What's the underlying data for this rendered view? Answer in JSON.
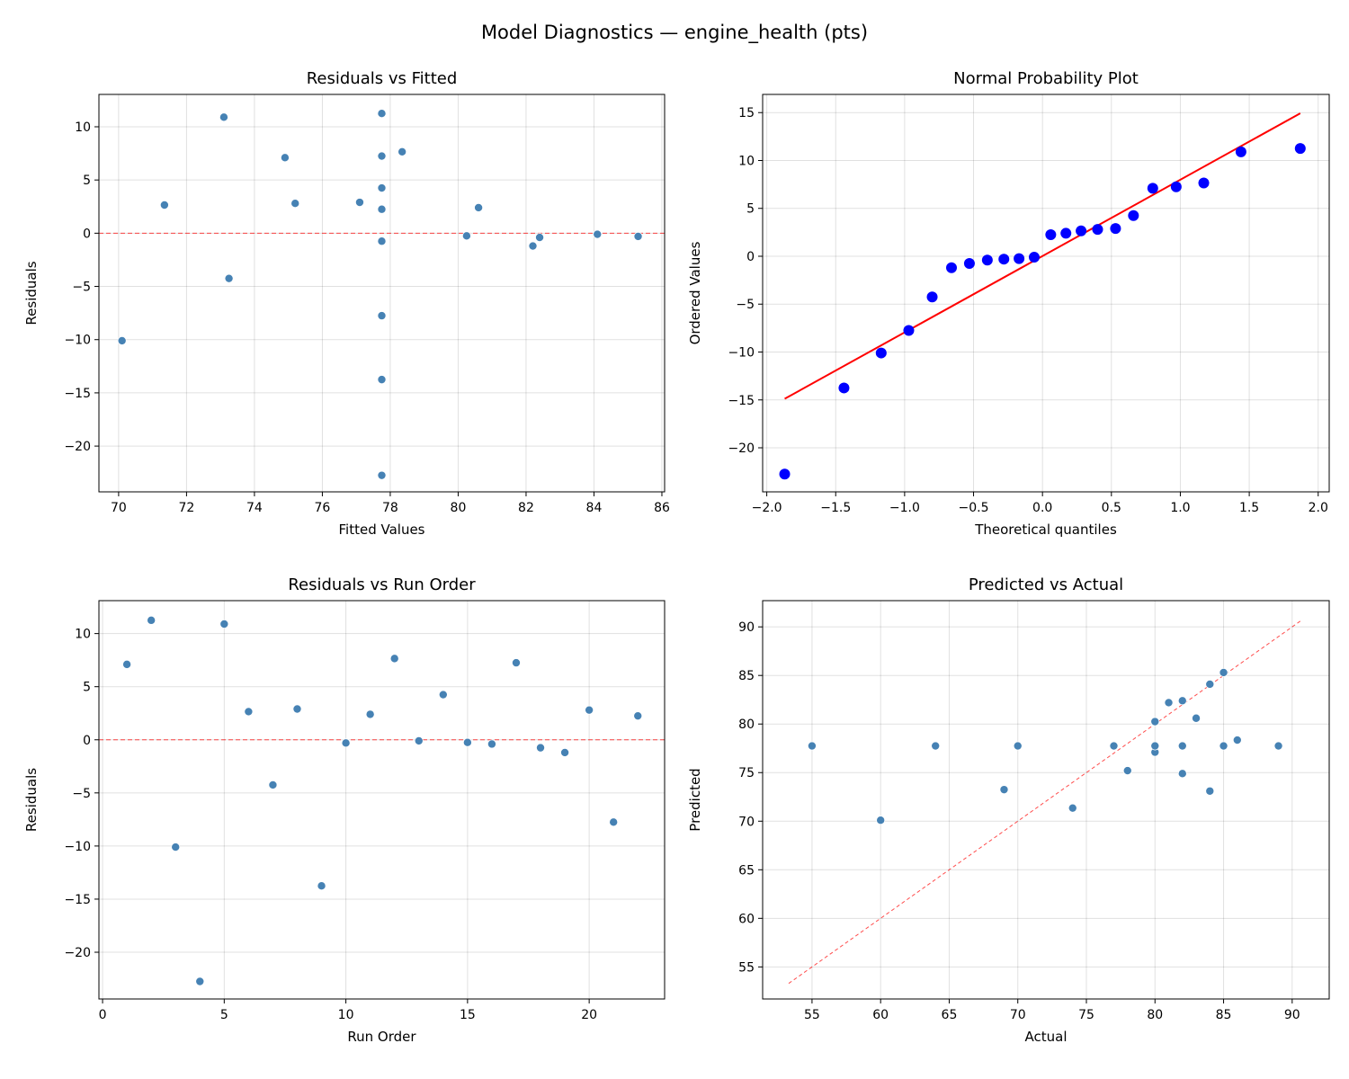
{
  "title": "Model Diagnostics — engine_health (pts)",
  "colors": {
    "points": "#4682b4",
    "probplot_points": "#0000ff",
    "fit_line": "#ff0000",
    "reference_line": "#ff0000"
  },
  "runs": [
    {
      "run": 1,
      "fitted": 74.9,
      "actual": 82,
      "residual": 7.1
    },
    {
      "run": 2,
      "fitted": 77.75,
      "actual": 89,
      "residual": 11.25
    },
    {
      "run": 3,
      "fitted": 70.1,
      "actual": 60,
      "residual": -10.1
    },
    {
      "run": 4,
      "fitted": 77.75,
      "actual": 55,
      "residual": -22.75
    },
    {
      "run": 5,
      "fitted": 73.1,
      "actual": 84,
      "residual": 10.9
    },
    {
      "run": 6,
      "fitted": 71.35,
      "actual": 74,
      "residual": 2.65
    },
    {
      "run": 7,
      "fitted": 73.25,
      "actual": 69,
      "residual": -4.25
    },
    {
      "run": 8,
      "fitted": 77.1,
      "actual": 80,
      "residual": 2.9
    },
    {
      "run": 9,
      "fitted": 77.75,
      "actual": 64,
      "residual": -13.75
    },
    {
      "run": 10,
      "fitted": 85.3,
      "actual": 85,
      "residual": -0.3
    },
    {
      "run": 11,
      "fitted": 80.6,
      "actual": 83,
      "residual": 2.4
    },
    {
      "run": 12,
      "fitted": 78.35,
      "actual": 86,
      "residual": 7.65
    },
    {
      "run": 13,
      "fitted": 84.1,
      "actual": 84,
      "residual": -0.1
    },
    {
      "run": 14,
      "fitted": 77.75,
      "actual": 82,
      "residual": 4.25
    },
    {
      "run": 15,
      "fitted": 80.25,
      "actual": 80,
      "residual": -0.25
    },
    {
      "run": 16,
      "fitted": 82.4,
      "actual": 82,
      "residual": -0.4
    },
    {
      "run": 17,
      "fitted": 77.75,
      "actual": 85,
      "residual": 7.25
    },
    {
      "run": 18,
      "fitted": 77.75,
      "actual": 77,
      "residual": -0.75
    },
    {
      "run": 19,
      "fitted": 82.2,
      "actual": 81,
      "residual": -1.2
    },
    {
      "run": 20,
      "fitted": 75.2,
      "actual": 78,
      "residual": 2.8
    },
    {
      "run": 21,
      "fitted": 77.75,
      "actual": 70,
      "residual": -7.75
    },
    {
      "run": 22,
      "fitted": 77.75,
      "actual": 80,
      "residual": 2.25
    }
  ],
  "chart_data": [
    {
      "type": "scatter",
      "title": "Residuals vs Fitted",
      "xlabel": "Fitted Values",
      "ylabel": "Residuals",
      "x_field": "fitted",
      "y_field": "residual",
      "xlim": [
        69.42,
        86.08
      ],
      "ylim": [
        -24.3,
        13.04
      ],
      "xticks": [
        70,
        72,
        74,
        76,
        78,
        80,
        82,
        84,
        86
      ],
      "xticklabels": [
        "70",
        "72",
        "74",
        "76",
        "78",
        "80",
        "82",
        "84",
        "86"
      ],
      "yticks": [
        -20,
        -15,
        -10,
        -5,
        0,
        5,
        10
      ],
      "yticklabels": [
        "−20",
        "−15",
        "−10",
        "−5",
        "0",
        "5",
        "10"
      ],
      "hline": 0,
      "grid": true
    },
    {
      "type": "scatter",
      "title": "Normal Probability Plot",
      "xlabel": "Theoretical quantiles",
      "ylabel": "Ordered Values",
      "quantiles": [
        -1.87,
        -1.44,
        -1.17,
        -0.97,
        -0.8,
        -0.66,
        -0.53,
        -0.4,
        -0.28,
        -0.17,
        -0.06,
        0.06,
        0.17,
        0.28,
        0.4,
        0.53,
        0.66,
        0.8,
        0.97,
        1.17,
        1.44,
        1.87
      ],
      "ordered_values": [
        -22.75,
        -13.75,
        -10.1,
        -7.75,
        -4.25,
        -1.2,
        -0.75,
        -0.4,
        -0.3,
        -0.25,
        -0.1,
        2.25,
        2.4,
        2.65,
        2.8,
        2.9,
        4.25,
        7.1,
        7.25,
        7.65,
        10.9,
        11.25
      ],
      "fit_line": {
        "slope": 7.97,
        "intercept": 0.02
      },
      "xlim": [
        -2.03,
        2.08
      ],
      "ylim": [
        -24.6,
        16.9
      ],
      "xticks": [
        -2,
        -1.5,
        -1,
        -0.5,
        0,
        0.5,
        1,
        1.5,
        2
      ],
      "xticklabels": [
        "−2.0",
        "−1.5",
        "−1.0",
        "−0.5",
        "0.0",
        "0.5",
        "1.0",
        "1.5",
        "2.0"
      ],
      "yticks": [
        -20,
        -15,
        -10,
        -5,
        0,
        5,
        10,
        15
      ],
      "yticklabels": [
        "−20",
        "−15",
        "−10",
        "−5",
        "0",
        "5",
        "10",
        "15"
      ],
      "grid": true
    },
    {
      "type": "scatter",
      "title": "Residuals vs Run Order",
      "xlabel": "Run Order",
      "ylabel": "Residuals",
      "x_field": "run",
      "y_field": "residual",
      "xlim": [
        -0.15,
        23.1
      ],
      "ylim": [
        -24.4,
        13.1
      ],
      "xticks": [
        0,
        5,
        10,
        15,
        20
      ],
      "xticklabels": [
        "0",
        "5",
        "10",
        "15",
        "20"
      ],
      "yticks": [
        -20,
        -15,
        -10,
        -5,
        0,
        5,
        10
      ],
      "yticklabels": [
        "−20",
        "−15",
        "−10",
        "−5",
        "0",
        "5",
        "10"
      ],
      "hline": 0,
      "grid": true
    },
    {
      "type": "scatter",
      "title": "Predicted vs Actual",
      "xlabel": "Actual",
      "ylabel": "Predicted",
      "x_field": "actual",
      "y_field": "fitted",
      "xlim": [
        51.4,
        92.7
      ],
      "ylim": [
        51.7,
        92.7
      ],
      "xticks": [
        55,
        60,
        65,
        70,
        75,
        80,
        85,
        90
      ],
      "xticklabels": [
        "55",
        "60",
        "65",
        "70",
        "75",
        "80",
        "85",
        "90"
      ],
      "yticks": [
        55,
        60,
        65,
        70,
        75,
        80,
        85,
        90
      ],
      "yticklabels": [
        "55",
        "60",
        "65",
        "70",
        "75",
        "80",
        "85",
        "90"
      ],
      "diagonal": [
        53.3,
        90.7
      ],
      "grid": true
    }
  ]
}
